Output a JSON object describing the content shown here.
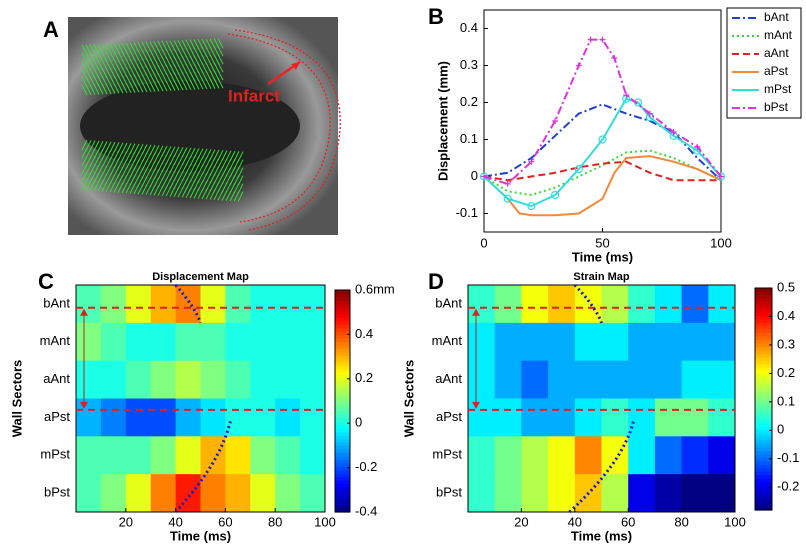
{
  "figure": {
    "panel_labels": [
      "A",
      "B",
      "C",
      "D"
    ],
    "annotation": "Infarct"
  },
  "chart_data": [
    {
      "type": "line",
      "xlabel": "Time (ms)",
      "ylabel": "Displacement (mm)",
      "xlim": [
        0,
        100
      ],
      "xticks": [
        0,
        50,
        100
      ],
      "ylim": [
        -0.15,
        0.45
      ],
      "yticks": [
        -0.1,
        0,
        0.1,
        0.2,
        0.3,
        0.4
      ],
      "legend": "outside-right",
      "series": [
        {
          "name": "bAnt",
          "color": "#1f3fd0",
          "linestyle": "dashdot",
          "x": [
            0,
            10,
            20,
            30,
            40,
            50,
            60,
            70,
            80,
            90,
            100
          ],
          "values": [
            0,
            0.01,
            0.05,
            0.11,
            0.17,
            0.195,
            0.17,
            0.15,
            0.12,
            0.05,
            -0.01
          ]
        },
        {
          "name": "mAnt",
          "color": "#33dd33",
          "linestyle": "dotted",
          "x": [
            0,
            10,
            20,
            30,
            40,
            50,
            60,
            70,
            80,
            90,
            100
          ],
          "values": [
            0,
            -0.04,
            -0.05,
            -0.03,
            0,
            0.03,
            0.065,
            0.07,
            0.05,
            0.02,
            -0.01
          ]
        },
        {
          "name": "aAnt",
          "color": "#dd2222",
          "linestyle": "dashed",
          "x": [
            0,
            10,
            20,
            30,
            40,
            50,
            60,
            70,
            80,
            90,
            100
          ],
          "values": [
            0,
            -0.01,
            0,
            0.01,
            0.025,
            0.035,
            0.04,
            0.01,
            -0.01,
            -0.01,
            -0.01
          ]
        },
        {
          "name": "aPst",
          "color": "#f08a3a",
          "linestyle": "solid",
          "x": [
            0,
            10,
            15,
            20,
            30,
            40,
            50,
            55,
            60,
            70,
            80,
            90,
            100
          ],
          "values": [
            0,
            -0.06,
            -0.1,
            -0.105,
            -0.105,
            -0.1,
            -0.06,
            0.01,
            0.05,
            0.055,
            0.04,
            0.02,
            -0.01
          ]
        },
        {
          "name": "mPst",
          "color": "#33dddd",
          "linestyle": "solid",
          "marker": "o",
          "x": [
            0,
            10,
            20,
            30,
            40,
            50,
            60,
            65,
            70,
            80,
            90,
            100
          ],
          "values": [
            0,
            -0.06,
            -0.08,
            -0.05,
            0.02,
            0.1,
            0.21,
            0.2,
            0.16,
            0.11,
            0.07,
            0
          ]
        },
        {
          "name": "bPst",
          "color": "#dd33dd",
          "linestyle": "dashdot",
          "marker": "+",
          "x": [
            0,
            10,
            20,
            30,
            40,
            45,
            50,
            55,
            60,
            70,
            80,
            90,
            100
          ],
          "values": [
            0,
            -0.02,
            0.04,
            0.15,
            0.3,
            0.37,
            0.37,
            0.32,
            0.22,
            0.17,
            0.12,
            0.08,
            0
          ]
        }
      ]
    },
    {
      "type": "heatmap",
      "title": "Displacement Map",
      "xlabel": "Time (ms)",
      "ylabel": "Wall Sectors",
      "colormap": "jet",
      "categories": [
        "bAnt",
        "mAnt",
        "aAnt",
        "aPst",
        "mPst",
        "bPst"
      ],
      "x": [
        5,
        15,
        25,
        35,
        45,
        55,
        65,
        75,
        85,
        95
      ],
      "xlim": [
        0,
        100
      ],
      "xticks": [
        20,
        40,
        60,
        80,
        100
      ],
      "values": [
        [
          0.05,
          0.1,
          0.2,
          0.3,
          0.35,
          0.2,
          0.05,
          0,
          0,
          0
        ],
        [
          0.1,
          0.05,
          0,
          0,
          0.05,
          0.05,
          0,
          0,
          0,
          0
        ],
        [
          0,
          0,
          0.05,
          0.1,
          0.15,
          0.1,
          0.05,
          0,
          0,
          0
        ],
        [
          -0.1,
          -0.15,
          -0.2,
          -0.2,
          -0.1,
          -0.05,
          0,
          0,
          -0.05,
          0
        ],
        [
          0.05,
          0.05,
          0.05,
          0.1,
          0.2,
          0.3,
          0.25,
          0.1,
          0.05,
          0
        ],
        [
          0.05,
          0.1,
          0.2,
          0.35,
          0.45,
          0.35,
          0.3,
          0.2,
          0.1,
          0.05
        ]
      ],
      "clim": [
        -0.4,
        0.6
      ],
      "cticks": [
        -0.4,
        -0.2,
        0,
        0.2,
        0.4,
        {
          "value": 0.6,
          "label": "0.6mm"
        }
      ]
    },
    {
      "type": "heatmap",
      "title": "Strain Map",
      "xlabel": "Time (ms)",
      "ylabel": "Wall Sectors",
      "colormap": "jet",
      "categories": [
        "bAnt",
        "mAnt",
        "aAnt",
        "aPst",
        "mPst",
        "bPst"
      ],
      "x": [
        5,
        15,
        25,
        35,
        45,
        55,
        65,
        75,
        85,
        95
      ],
      "xlim": [
        0,
        100
      ],
      "xticks": [
        20,
        40,
        60,
        80,
        100
      ],
      "values": [
        [
          0.05,
          0.1,
          0.2,
          0.25,
          0.2,
          0.15,
          0.05,
          0,
          -0.1,
          0
        ],
        [
          0,
          -0.05,
          -0.05,
          -0.05,
          0,
          0,
          -0.05,
          -0.05,
          -0.05,
          -0.05
        ],
        [
          0,
          -0.05,
          -0.1,
          -0.05,
          -0.05,
          -0.05,
          -0.05,
          -0.05,
          0,
          0
        ],
        [
          0,
          0,
          -0.05,
          -0.05,
          0,
          0.05,
          0,
          0.1,
          0.1,
          0.05
        ],
        [
          0.05,
          0.1,
          0.15,
          0.2,
          0.3,
          0.2,
          0,
          -0.1,
          -0.15,
          -0.2
        ],
        [
          0.05,
          0.1,
          0.15,
          0.2,
          0.25,
          0.15,
          -0.2,
          -0.25,
          -0.28,
          -0.28
        ]
      ],
      "clim": [
        -0.28,
        0.5
      ],
      "cticks": [
        -0.2,
        -0.1,
        0,
        0.1,
        0.2,
        0.3,
        0.4,
        0.5
      ]
    }
  ]
}
